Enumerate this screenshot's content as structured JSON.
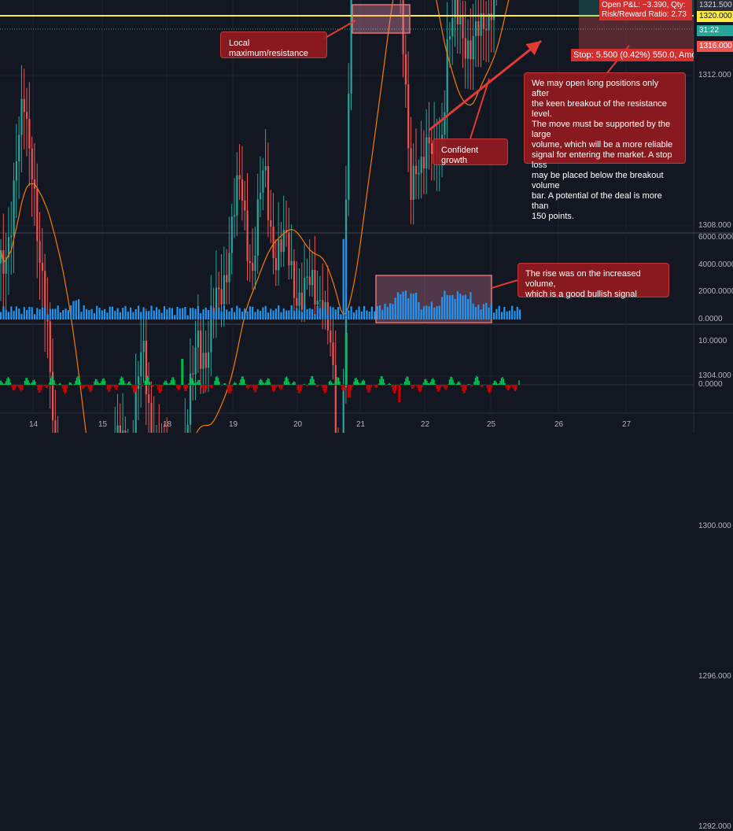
{
  "chart": {
    "price_labels": [
      "1312.000",
      "1308.000",
      "1304.000",
      "1300.000",
      "1296.000",
      "1292.000"
    ],
    "volume_labels": [
      "6000.0000",
      "4000.0000",
      "2000.0000",
      "0.0000"
    ],
    "osc_labels": [
      "10.0000",
      "0.0000"
    ],
    "x_labels": [
      "14",
      "15",
      "18",
      "19",
      "20",
      "21",
      "22",
      "25",
      "26",
      "27"
    ],
    "price_tags": {
      "top": "1321.500",
      "resistance": "1320.000",
      "current": "31:22",
      "stop": "1316.000"
    },
    "colors": {
      "background": "#131722",
      "up": "#26a69a",
      "down": "#ef5350",
      "volume": "#2196f3",
      "resistance_line": "#ffeb3b",
      "ma_line": "#f57c00",
      "osc_positive": "#00c853",
      "osc_negative": "#d50000"
    }
  },
  "position_box": {
    "open_pnl": "Open P&L: −3.390, Qty: ",
    "risk_reward": "Risk/Reward Ratio: 2.73",
    "stop": "Stop: 5.500 (0.42%) 550.0, Amo"
  },
  "annotations": {
    "local_max": "Local maximum/resistance",
    "confident": "Confident growth",
    "strategy": "We may open long positions only after\nthe keen breakout of the resistance level.\nThe move must be supported by the large\nvolume, which will be a more reliable\nsignal for entering the market. A stop loss\nmay be placed below the breakout volume\nbar. A potential of the deal is more than\n150 points.",
    "volume_note": "The rise was on the increased volume,\nwhich is a good bullish signal"
  }
}
